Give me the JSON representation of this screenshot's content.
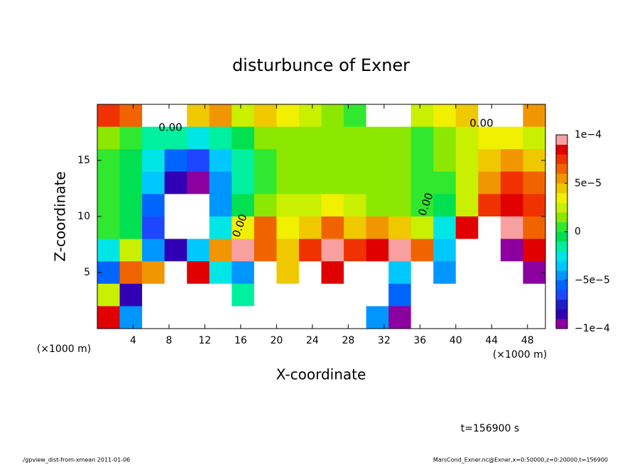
{
  "chart_data": {
    "type": "heatmap",
    "title": "disturbunce of Exner",
    "xlabel": "X-coordinate",
    "ylabel": "Z-coordinate",
    "x_unit": "(×1000 m)",
    "y_unit": "(×1000 m)",
    "time_label": "t=156900 s",
    "footer_left": "./gpview_dist-from-xmean  2011-01-06",
    "footer_right": "MarsCond_Exner.nc@Exner,x=0:50000,z=0:20000,t=156900",
    "contour_label": "0.00",
    "xlim": [
      0,
      50
    ],
    "ylim": [
      0,
      20
    ],
    "xticks": [
      4,
      8,
      12,
      16,
      20,
      24,
      28,
      32,
      36,
      40,
      44,
      48
    ],
    "yticks": [
      5,
      10,
      15
    ],
    "clim": [
      -0.0001,
      0.0001
    ],
    "cticks": [
      {
        "value": -0.0001,
        "label": "−1e−4"
      },
      {
        "value": -5e-05,
        "label": "−5e−5"
      },
      0,
      {
        "value": 5e-05,
        "label": "5e−5"
      },
      {
        "value": 0.0001,
        "label": "1e−4"
      }
    ],
    "colors": [
      "#8c00a0",
      "#3200b4",
      "#1e1ec8",
      "#1e46ff",
      "#0064ff",
      "#0096ff",
      "#00c8ff",
      "#00e6e6",
      "#00f0a0",
      "#00e050",
      "#30e830",
      "#8ce800",
      "#c8f000",
      "#f0f000",
      "#f0c800",
      "#f09600",
      "#f06400",
      "#f03200",
      "#e00000",
      "#f8a0a0"
    ],
    "x": [
      1.25,
      3.75,
      6.25,
      8.75,
      11.25,
      13.75,
      16.25,
      18.75,
      21.25,
      23.75,
      26.25,
      28.75,
      31.25,
      33.75,
      36.25,
      38.75,
      41.25,
      43.75,
      46.25,
      48.75
    ],
    "y": [
      19,
      17,
      15,
      13,
      11,
      9,
      7,
      5,
      3,
      1
    ],
    "z": [
      [
        7e-05,
        6e-05,
        0.00015,
        0.00015,
        4e-05,
        5e-05,
        2e-05,
        4e-05,
        3e-05,
        2e-05,
        1e-05,
        0,
        0.00015,
        0.00015,
        2e-05,
        3e-05,
        4e-05,
        0.00015,
        0.00015,
        5e-05
      ],
      [
        1e-05,
        0,
        -2e-05,
        -2e-05,
        -3e-05,
        -2e-05,
        -1e-05,
        1e-05,
        1e-05,
        1e-05,
        1e-05,
        1e-05,
        1e-05,
        1e-05,
        0,
        1e-05,
        2e-05,
        3e-05,
        3e-05,
        2e-05
      ],
      [
        0,
        -1e-05,
        -3e-05,
        -6e-05,
        -7e-05,
        -4e-05,
        -2e-05,
        0,
        1e-05,
        1e-05,
        1e-05,
        1e-05,
        1e-05,
        1e-05,
        0,
        1e-05,
        2e-05,
        4e-05,
        5e-05,
        4e-05
      ],
      [
        0,
        -1e-05,
        -4e-05,
        -8e-05,
        -9e-05,
        -5e-05,
        -2e-05,
        0,
        1e-05,
        1e-05,
        1e-05,
        1e-05,
        1e-05,
        1e-05,
        0,
        0,
        2e-05,
        5e-05,
        7e-05,
        6e-05
      ],
      [
        0,
        -1e-05,
        -6e-05,
        -0.00012,
        -0.00012,
        -5e-05,
        -1e-05,
        1e-05,
        2e-05,
        2e-05,
        3e-05,
        2e-05,
        1e-05,
        1e-05,
        0,
        -1e-05,
        2e-05,
        7e-05,
        8e-05,
        7e-05
      ],
      [
        0,
        -1e-05,
        -7e-05,
        -0.00015,
        -0.00015,
        -3e-05,
        3e-05,
        6e-05,
        3e-05,
        4e-05,
        6e-05,
        4e-05,
        5e-05,
        4e-05,
        2e-05,
        -3e-05,
        8e-05,
        0.00015,
        9e-05,
        6e-05
      ],
      [
        -3e-05,
        2e-05,
        -5e-05,
        -8e-05,
        -4e-05,
        5e-05,
        9e-05,
        6e-05,
        4e-05,
        7e-05,
        9e-05,
        7e-05,
        8e-05,
        9e-05,
        6e-05,
        -4e-05,
        0.00015,
        0.00015,
        -9e-05,
        8e-05
      ],
      [
        -6e-05,
        6e-05,
        5e-05,
        0.00015,
        8e-05,
        -3e-05,
        -5e-05,
        0.00015,
        4e-05,
        0.00015,
        8e-05,
        0.00015,
        0.00015,
        -4e-05,
        0.00015,
        -5e-05,
        0.00015,
        -0.00015,
        0.00015,
        -0.0001
      ],
      [
        2e-05,
        -8e-05,
        0.00015,
        -0.00015,
        0.00015,
        0.00015,
        -2e-05,
        0.00015,
        0.00015,
        0.00015,
        0.00015,
        0.00015,
        0.00015,
        -6e-05,
        0.00015,
        0.00015,
        -0.00015,
        0.00015,
        -0.00015,
        -0.00015
      ],
      [
        8e-05,
        -5e-05,
        0.00015,
        -0.00015,
        0.00015,
        0.00015,
        0.00015,
        0.00015,
        0.00015,
        0.00015,
        0.00015,
        0.00015,
        -5e-05,
        -0.0001,
        0.00015,
        0.00015,
        -0.00015,
        0.00015,
        0.00015,
        -0.00015
      ]
    ]
  }
}
